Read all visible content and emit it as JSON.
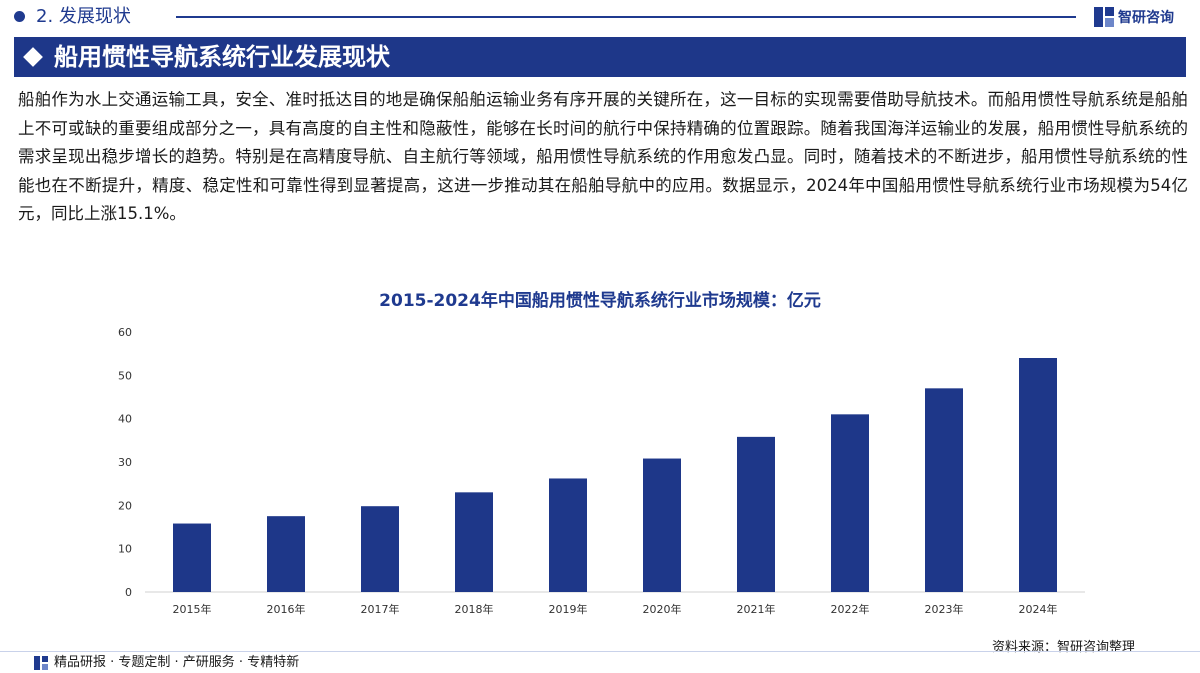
{
  "header": {
    "section": "2. 发展现状",
    "logo_text": "智研咨询"
  },
  "banner": {
    "title": "船用惯性导航系统行业发展现状"
  },
  "body": {
    "paragraph": "船舶作为水上交通运输工具，安全、准时抵达目的地是确保船舶运输业务有序开展的关键所在，这一目标的实现需要借助导航技术。而船用惯性导航系统是船舶上不可或缺的重要组成部分之一，具有高度的自主性和隐蔽性，能够在长时间的航行中保持精确的位置跟踪。随着我国海洋运输业的发展，船用惯性导航系统的需求呈现出稳步增长的趋势。特别是在高精度导航、自主航行等领域，船用惯性导航系统的作用愈发凸显。同时，随着技术的不断进步，船用惯性导航系统的性能也在不断提升，精度、稳定性和可靠性得到显著提高，这进一步推动其在船舶导航中的应用。数据显示，2024年中国船用惯性导航系统行业市场规模为54亿元，同比上涨15.1%。"
  },
  "chart_data": {
    "type": "bar",
    "title": "2015-2024年中国船用惯性导航系统行业市场规模：亿元",
    "categories": [
      "2015年",
      "2016年",
      "2017年",
      "2018年",
      "2019年",
      "2020年",
      "2021年",
      "2022年",
      "2023年",
      "2024年"
    ],
    "values": [
      15.8,
      17.5,
      19.8,
      23.0,
      26.2,
      30.8,
      35.8,
      41.0,
      47.0,
      54.0
    ],
    "xlabel": "",
    "ylabel": "",
    "ylim": [
      0,
      60
    ],
    "yticks": [
      0,
      10,
      20,
      30,
      40,
      50,
      60
    ],
    "grid": false,
    "bar_color": "#1e3789"
  },
  "source": "资料来源：智研咨询整理",
  "footer": {
    "text": "精品研报 · 专题定制 · 产研服务 · 专精特新"
  }
}
